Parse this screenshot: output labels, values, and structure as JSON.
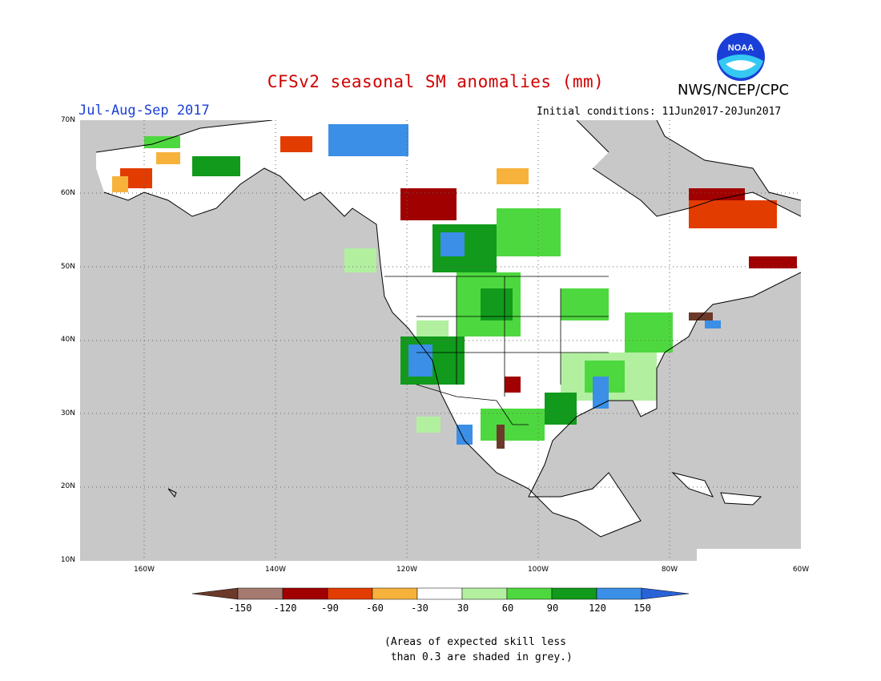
{
  "title": "CFSv2 seasonal SM anomalies (mm)",
  "agency": "NWS/NCEP/CPC",
  "logo_text": "NOAA",
  "season": "Jul-Aug-Sep 2017",
  "initial_conditions": "Initial conditions: 11Jun2017-20Jun2017",
  "lat_labels": [
    "70N",
    "60N",
    "50N",
    "40N",
    "30N",
    "20N",
    "10N"
  ],
  "lon_labels": [
    "160W",
    "140W",
    "120W",
    "100W",
    "80W",
    "60W"
  ],
  "colorbar": {
    "ticks": [
      "-150",
      "-120",
      "-90",
      "-60",
      "-30",
      "30",
      "60",
      "90",
      "120",
      "150"
    ],
    "colors": [
      "#6b3a2a",
      "#a57a70",
      "#a00000",
      "#e23c00",
      "#f7b23c",
      "#ffffff",
      "#b2f0a0",
      "#4ed83f",
      "#119a1b",
      "#3b8fe6",
      "#2a62d8"
    ]
  },
  "note": "(Areas of expected skill less\n than 0.3 are shaded in grey.)",
  "colors": {
    "land_skill": "#ffffff",
    "masked": "#c8c8c8",
    "title": "#d10000",
    "season": "#1a3fd6"
  },
  "anomaly_patches": [
    {
      "region": "Alaska west coast",
      "value": -45
    },
    {
      "region": "Alaska southwest",
      "value": -75
    },
    {
      "region": "Northern Yukon",
      "value": 75
    },
    {
      "region": "Arctic coast NWT",
      "value": 105
    },
    {
      "region": "Northern Alberta",
      "value": -105
    },
    {
      "region": "Northern Saskatchewan",
      "value": 75
    },
    {
      "region": "Northern Manitoba",
      "value": 75
    },
    {
      "region": "Northern Quebec",
      "value": -105
    },
    {
      "region": "Labrador",
      "value": -75
    },
    {
      "region": "Montana",
      "value": 105
    },
    {
      "region": "Great Basin",
      "value": 75
    },
    {
      "region": "Great Lakes",
      "value": 75
    },
    {
      "region": "Southeast US",
      "value": 75
    },
    {
      "region": "Mexico Sierra Madre",
      "value": 75
    }
  ]
}
